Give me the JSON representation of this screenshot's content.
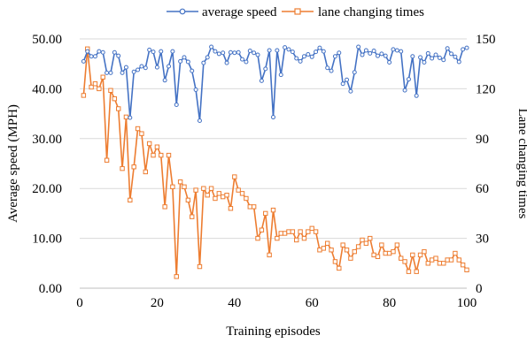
{
  "chart_data": {
    "type": "line",
    "title": "",
    "xlabel": "Training episodes",
    "ylabel_left": "Average speed (MPH)",
    "ylabel_right": "Lane changing times",
    "xlim": [
      0,
      100
    ],
    "ylim_left": [
      0,
      50
    ],
    "ylim_right": [
      0,
      150
    ],
    "x_ticks": [
      0,
      20,
      40,
      60,
      80,
      100
    ],
    "y_left_ticks": [
      "0.00",
      "10.00",
      "20.00",
      "30.00",
      "40.00",
      "50.00"
    ],
    "y_right_ticks": [
      0,
      30,
      60,
      90,
      120,
      150
    ],
    "grid": "horizontal",
    "legend_position": "top",
    "x": [
      1,
      2,
      3,
      4,
      5,
      6,
      7,
      8,
      9,
      10,
      11,
      12,
      13,
      14,
      15,
      16,
      17,
      18,
      19,
      20,
      21,
      22,
      23,
      24,
      25,
      26,
      27,
      28,
      29,
      30,
      31,
      32,
      33,
      34,
      35,
      36,
      37,
      38,
      39,
      40,
      41,
      42,
      43,
      44,
      45,
      46,
      47,
      48,
      49,
      50,
      51,
      52,
      53,
      54,
      55,
      56,
      57,
      58,
      59,
      60,
      61,
      62,
      63,
      64,
      65,
      66,
      67,
      68,
      69,
      70,
      71,
      72,
      73,
      74,
      75,
      76,
      77,
      78,
      79,
      80,
      81,
      82,
      83,
      84,
      85,
      86,
      87,
      88,
      89,
      90,
      91,
      92,
      93,
      94,
      95,
      96,
      97,
      98,
      99,
      100
    ],
    "series": [
      {
        "name": "average speed",
        "axis": "left",
        "color": "#4472C4",
        "marker": "circle",
        "values": [
          45.5,
          47.5,
          46.5,
          46.5,
          47.5,
          47.3,
          43.2,
          43.2,
          47.3,
          46.6,
          43.2,
          44.3,
          34.2,
          43.4,
          43.8,
          44.5,
          44.2,
          47.8,
          47.4,
          44.3,
          47.5,
          41.7,
          44.5,
          47.5,
          36.8,
          45.5,
          46.3,
          45.4,
          43.6,
          39.8,
          33.6,
          45.2,
          46.3,
          48.4,
          47.5,
          47.0,
          47.2,
          45.2,
          47.3,
          47.2,
          47.3,
          45.9,
          45.4,
          47.6,
          47.2,
          46.8,
          41.6,
          44.0,
          47.7,
          34.3,
          47.7,
          42.8,
          48.3,
          47.9,
          47.4,
          46.1,
          45.5,
          46.5,
          46.9,
          46.4,
          47.4,
          48.2,
          47.5,
          44.2,
          43.6,
          46.5,
          47.2,
          41.0,
          41.8,
          39.5,
          43.3,
          48.4,
          46.8,
          47.7,
          47.1,
          47.6,
          46.6,
          47.0,
          46.6,
          45.3,
          47.9,
          47.7,
          47.5,
          39.7,
          41.9,
          46.5,
          38.6,
          46.3,
          45.3,
          47.1,
          46.1,
          46.8,
          46.2,
          45.8,
          48.1,
          47.0,
          46.4,
          45.4,
          47.9,
          48.2
        ]
      },
      {
        "name": "lane changing times",
        "axis": "right",
        "color": "#ED7D31",
        "marker": "square",
        "values": [
          116,
          144,
          121,
          123,
          120,
          127,
          77,
          119,
          114,
          108,
          72,
          103,
          53,
          73,
          96,
          93,
          70,
          87,
          80,
          85,
          80,
          49,
          80,
          61,
          7,
          64,
          61,
          53,
          43,
          59,
          13,
          60,
          56,
          60,
          54,
          57,
          55,
          56,
          48,
          67,
          59,
          57,
          54,
          49,
          49,
          30,
          35,
          45,
          20,
          47,
          30,
          33,
          33,
          34,
          34,
          29,
          34,
          30,
          34,
          36,
          34,
          23,
          24,
          27,
          23,
          16,
          12,
          26,
          23,
          18,
          22,
          25,
          29,
          27,
          30,
          20,
          19,
          26,
          21,
          21,
          22,
          26,
          18,
          16,
          10,
          20,
          10,
          20,
          22,
          15,
          17,
          18,
          15,
          15,
          17,
          17,
          21,
          17,
          14,
          11
        ]
      }
    ]
  }
}
